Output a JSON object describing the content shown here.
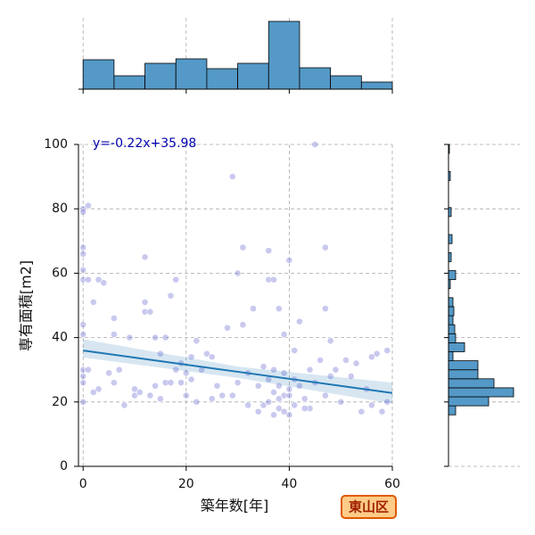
{
  "chart_data": [
    {
      "type": "scatter",
      "xlabel": "築年数[年]",
      "ylabel": "専有面積[m2]",
      "annotation": "y=-0.22x+35.98",
      "badge": "東山区",
      "color": "#6464d2",
      "x": [
        0,
        1,
        0,
        0,
        0,
        0,
        0,
        1,
        0,
        0,
        0,
        0,
        0,
        0,
        1,
        2,
        3,
        3,
        4,
        2,
        5,
        6,
        6,
        6,
        7,
        8,
        9,
        10,
        10,
        11,
        12,
        12,
        12,
        13,
        13,
        14,
        14,
        15,
        15,
        16,
        16,
        17,
        17,
        18,
        18,
        19,
        19,
        20,
        20,
        21,
        21,
        22,
        22,
        23,
        24,
        25,
        25,
        26,
        27,
        28,
        29,
        29,
        30,
        30,
        31,
        31,
        32,
        32,
        33,
        34,
        34,
        35,
        35,
        36,
        36,
        36,
        37,
        37,
        37,
        38,
        38,
        38,
        39,
        39,
        39,
        40,
        40,
        40,
        41,
        41,
        42,
        42,
        43,
        44,
        44,
        45,
        45,
        46,
        47,
        47,
        47,
        48,
        48,
        49,
        50,
        51,
        52,
        53,
        54,
        55,
        56,
        56,
        57,
        58,
        59,
        59,
        37,
        38,
        40,
        41,
        43,
        36,
        39
      ],
      "values": [
        80,
        81,
        79,
        68,
        66,
        61,
        58,
        58,
        44,
        41,
        30,
        28,
        26,
        20,
        30,
        51,
        24,
        58,
        57,
        23,
        29,
        46,
        41,
        26,
        30,
        19,
        40,
        24,
        22,
        23,
        65,
        51,
        48,
        48,
        22,
        25,
        40,
        21,
        35,
        40,
        26,
        26,
        53,
        58,
        30,
        32,
        26,
        29,
        22,
        27,
        34,
        39,
        20,
        30,
        35,
        34,
        21,
        25,
        22,
        43,
        90,
        22,
        60,
        26,
        44,
        68,
        29,
        19,
        49,
        25,
        17,
        31,
        19,
        58,
        67,
        20,
        58,
        23,
        30,
        25,
        18,
        49,
        41,
        29,
        22,
        16,
        64,
        22,
        36,
        19,
        45,
        25,
        21,
        30,
        18,
        100,
        26,
        33,
        68,
        49,
        22,
        39,
        28,
        30,
        20,
        33,
        28,
        32,
        17,
        24,
        34,
        19,
        35,
        17,
        36,
        20,
        16,
        21,
        24,
        27,
        18,
        27,
        17
      ],
      "fit": {
        "color": "#1f77b4",
        "x": [
          0,
          30,
          60
        ],
        "values": [
          35.98,
          29.38,
          22.78
        ],
        "lower": [
          33.8,
          27.5,
          19.5
        ],
        "upper": [
          39.5,
          31.0,
          26.0
        ]
      },
      "xlim": [
        -0.9,
        60
      ],
      "xticks": [
        0,
        20,
        40,
        60
      ],
      "ylim": [
        0,
        100
      ],
      "yticks": [
        0,
        20,
        40,
        60,
        80,
        100
      ],
      "grid": true
    },
    {
      "type": "histogram",
      "orientation": "vertical",
      "color": "#5499c7",
      "bins": [
        0,
        6,
        12,
        18,
        24,
        30,
        36,
        42,
        48,
        54,
        60
      ],
      "values": [
        33,
        15,
        29,
        34,
        23,
        29,
        76,
        24,
        15,
        8
      ],
      "xlim": [
        -0.9,
        60
      ],
      "xticks": [
        0,
        20,
        40,
        60
      ],
      "ylim": [
        0,
        80
      ],
      "grid": true
    },
    {
      "type": "histogram",
      "orientation": "horizontal",
      "color": "#5499c7",
      "bins": [
        16,
        18.8,
        21.6,
        24.4,
        27.2,
        30,
        32.8,
        35.6,
        38.4,
        41.2,
        44,
        46.8,
        49.6,
        52.4,
        55.2,
        58,
        60.8,
        63.6,
        66.4,
        69.2,
        72,
        74.8,
        77.6,
        80.4,
        83.2,
        86,
        88.8,
        91.6,
        94.4,
        97.2,
        100
      ],
      "values": [
        8,
        45,
        73,
        51,
        33,
        33,
        5,
        18,
        8,
        7,
        5,
        6,
        5,
        0,
        2,
        8,
        0,
        3,
        0,
        4,
        0,
        0,
        3,
        0,
        0,
        0,
        2,
        0,
        0,
        1
      ],
      "ylim": [
        0,
        100
      ],
      "yticks": [
        0,
        20,
        40,
        60,
        80,
        100
      ],
      "xlim": [
        0,
        80
      ],
      "grid": true
    }
  ]
}
